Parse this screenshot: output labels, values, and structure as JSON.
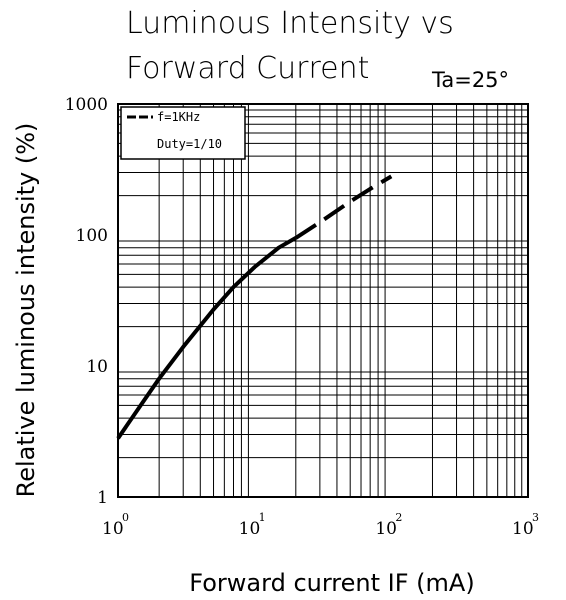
{
  "chart_data": {
    "type": "line",
    "title_line1": "Luminous Intensity vs",
    "title_line2": "Forward Current",
    "condition": "Ta=25°",
    "xlabel": "Forward current IF (mA)",
    "ylabel": "Relative luminous intensity (%)",
    "x_scale": "log",
    "y_scale": "log",
    "xlim": [
      1,
      1000
    ],
    "ylim": [
      1,
      1000
    ],
    "grid": true,
    "x_ticks": [
      {
        "base": "10",
        "exp": "0"
      },
      {
        "base": "10",
        "exp": "1"
      },
      {
        "base": "10",
        "exp": "2"
      },
      {
        "base": "10",
        "exp": "3"
      }
    ],
    "y_ticks": [
      "1",
      "10",
      "100",
      "1000"
    ],
    "legend": {
      "placement": "top-left",
      "line1": "f=1KHz",
      "line2": "Duty=1/10"
    },
    "series": [
      {
        "style": "solid",
        "x": [
          1,
          1.5,
          2,
          3,
          5,
          7,
          10,
          15,
          20
        ],
        "y": [
          2.8,
          5.2,
          8,
          14,
          27,
          40,
          57,
          80,
          95
        ]
      },
      {
        "style": "dashed",
        "x": [
          20,
          30,
          50,
          70,
          100
        ],
        "y": [
          95,
          125,
          180,
          225,
          280
        ]
      }
    ]
  }
}
